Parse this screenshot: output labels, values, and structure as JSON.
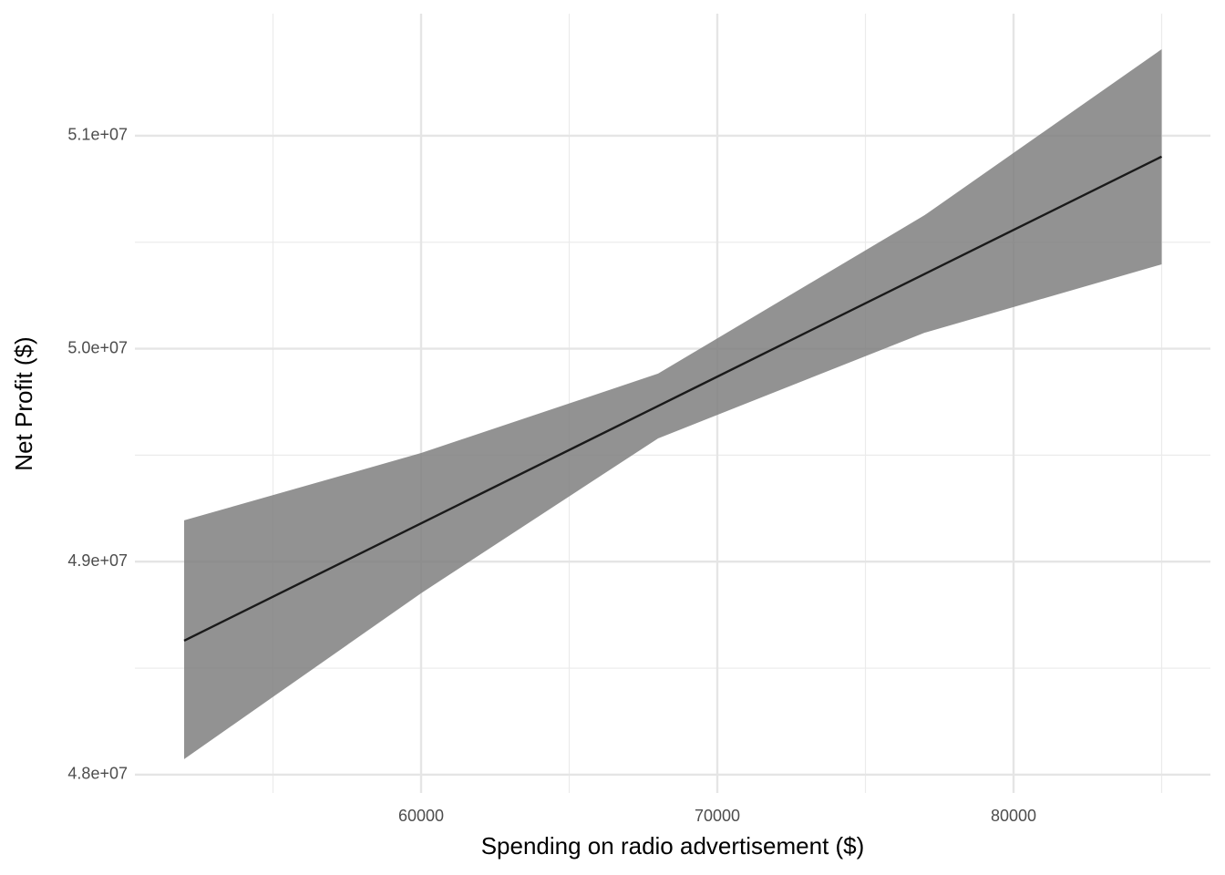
{
  "chart_data": {
    "type": "line",
    "x_label": "Spending on radio advertisement ($)",
    "y_label": "Net Profit ($)",
    "x": [
      52000,
      60000,
      68000,
      77000,
      85000
    ],
    "line": {
      "color": "#1a1a1a",
      "values": [
        48629000,
        49180000,
        49731000,
        50351000,
        50902000
      ]
    },
    "band": {
      "color": "#7f7f7f",
      "upper": [
        49194000,
        49510000,
        49883000,
        50627000,
        51406000
      ],
      "lower": [
        48073000,
        48852000,
        49579000,
        50075000,
        50396000
      ]
    },
    "xlim": [
      50338,
      86646
    ],
    "ylim": [
      47914000,
      51573000
    ],
    "xticks": [
      60000,
      70000,
      80000
    ],
    "xminorticks": [
      55000,
      65000,
      75000,
      85000
    ],
    "yticks": [
      {
        "value": 48000000,
        "label": "4.8e+07"
      },
      {
        "value": 49000000,
        "label": "4.9e+07"
      },
      {
        "value": 50000000,
        "label": "5.0e+07"
      },
      {
        "value": 51000000,
        "label": "5.1e+07"
      }
    ],
    "yminorticks": [
      48500000,
      49500000,
      50500000
    ],
    "grid": true
  }
}
